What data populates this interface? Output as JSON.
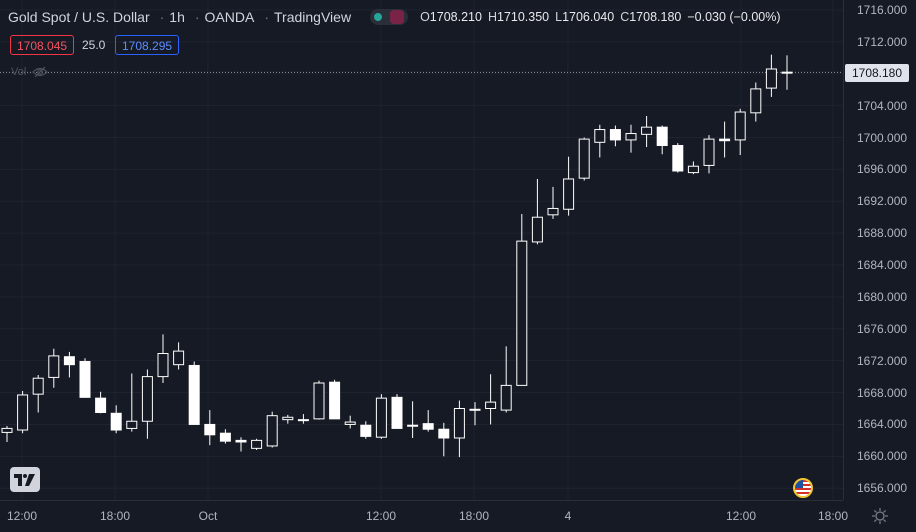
{
  "header": {
    "symbol": "Gold Spot / U.S. Dollar",
    "interval": "1h",
    "broker": "OANDA",
    "platform": "TradingView",
    "open_key": "O",
    "open": "1708.210",
    "high_key": "H",
    "high": "1710.350",
    "low_key": "L",
    "low": "1706.040",
    "close_key": "C",
    "close": "1708.180",
    "change": "−0.030 (−0.00%)"
  },
  "quote": {
    "bid": "1708.045",
    "spread": "25.0",
    "ask": "1708.295"
  },
  "volume_label": "Vol",
  "colors": {
    "background": "#161a25",
    "candle": "#ffffff",
    "bid": "#f23645",
    "ask": "#2962ff"
  },
  "icons": [
    "eye-off-icon",
    "tradingview-logo-icon",
    "us-flag-icon",
    "gear-icon"
  ],
  "chart_data": {
    "type": "candlestick",
    "x_ticks": [
      "12:00",
      "18:00",
      "Oct",
      "12:00",
      "18:00",
      "4",
      "12:00",
      "18:00"
    ],
    "ylim": [
      1654,
      1716.5
    ],
    "y_ticks": [
      "1716.000",
      "1712.000",
      "1708.000",
      "1704.000",
      "1700.000",
      "1696.000",
      "1692.000",
      "1688.000",
      "1684.000",
      "1680.000",
      "1676.000",
      "1672.000",
      "1668.000",
      "1664.000",
      "1660.000",
      "1656.000"
    ],
    "last_price": "1708.180",
    "grid": true,
    "candles": [
      {
        "o": 1663.0,
        "h": 1663.8,
        "l": 1661.8,
        "c": 1663.5
      },
      {
        "o": 1663.3,
        "h": 1668.2,
        "l": 1662.9,
        "c": 1667.7
      },
      {
        "o": 1667.8,
        "h": 1670.2,
        "l": 1665.5,
        "c": 1669.8
      },
      {
        "o": 1669.9,
        "h": 1673.5,
        "l": 1668.6,
        "c": 1672.6
      },
      {
        "o": 1672.5,
        "h": 1673.1,
        "l": 1669.9,
        "c": 1671.5
      },
      {
        "o": 1671.9,
        "h": 1672.3,
        "l": 1667.4,
        "c": 1667.4
      },
      {
        "o": 1667.3,
        "h": 1668.1,
        "l": 1665.4,
        "c": 1665.5
      },
      {
        "o": 1665.4,
        "h": 1666.4,
        "l": 1662.9,
        "c": 1663.3
      },
      {
        "o": 1663.5,
        "h": 1670.4,
        "l": 1663.1,
        "c": 1664.4
      },
      {
        "o": 1664.4,
        "h": 1670.9,
        "l": 1662.2,
        "c": 1670.0
      },
      {
        "o": 1670.0,
        "h": 1675.3,
        "l": 1669.2,
        "c": 1672.9
      },
      {
        "o": 1671.5,
        "h": 1674.3,
        "l": 1670.9,
        "c": 1673.2
      },
      {
        "o": 1671.4,
        "h": 1671.9,
        "l": 1664.0,
        "c": 1664.0
      },
      {
        "o": 1664.0,
        "h": 1665.8,
        "l": 1661.4,
        "c": 1662.7
      },
      {
        "o": 1662.9,
        "h": 1663.4,
        "l": 1661.6,
        "c": 1661.9
      },
      {
        "o": 1662.0,
        "h": 1662.4,
        "l": 1660.6,
        "c": 1661.8
      },
      {
        "o": 1661.0,
        "h": 1662.2,
        "l": 1660.8,
        "c": 1662.0
      },
      {
        "o": 1661.3,
        "h": 1665.6,
        "l": 1661.1,
        "c": 1665.1
      },
      {
        "o": 1664.6,
        "h": 1665.2,
        "l": 1664.1,
        "c": 1664.9
      },
      {
        "o": 1664.6,
        "h": 1665.3,
        "l": 1664.1,
        "c": 1664.6
      },
      {
        "o": 1664.7,
        "h": 1669.5,
        "l": 1664.6,
        "c": 1669.2
      },
      {
        "o": 1669.3,
        "h": 1669.6,
        "l": 1664.7,
        "c": 1664.7
      },
      {
        "o": 1664.0,
        "h": 1665.1,
        "l": 1663.5,
        "c": 1664.3
      },
      {
        "o": 1663.9,
        "h": 1664.4,
        "l": 1662.2,
        "c": 1662.5
      },
      {
        "o": 1662.4,
        "h": 1667.8,
        "l": 1662.2,
        "c": 1667.3
      },
      {
        "o": 1667.4,
        "h": 1667.8,
        "l": 1663.5,
        "c": 1663.5
      },
      {
        "o": 1663.9,
        "h": 1666.9,
        "l": 1662.3,
        "c": 1663.9
      },
      {
        "o": 1664.1,
        "h": 1665.8,
        "l": 1663.1,
        "c": 1663.4
      },
      {
        "o": 1663.4,
        "h": 1664.2,
        "l": 1660.0,
        "c": 1662.3
      },
      {
        "o": 1662.3,
        "h": 1667.0,
        "l": 1659.9,
        "c": 1666.0
      },
      {
        "o": 1665.9,
        "h": 1666.8,
        "l": 1663.9,
        "c": 1665.8
      },
      {
        "o": 1666.0,
        "h": 1670.3,
        "l": 1664.0,
        "c": 1666.8
      },
      {
        "o": 1665.8,
        "h": 1673.8,
        "l": 1665.5,
        "c": 1668.9
      },
      {
        "o": 1668.9,
        "h": 1690.4,
        "l": 1668.9,
        "c": 1687.0
      },
      {
        "o": 1686.9,
        "h": 1694.8,
        "l": 1686.6,
        "c": 1690.0
      },
      {
        "o": 1690.3,
        "h": 1693.8,
        "l": 1689.8,
        "c": 1691.1
      },
      {
        "o": 1691.0,
        "h": 1697.6,
        "l": 1690.2,
        "c": 1694.8
      },
      {
        "o": 1694.9,
        "h": 1700.0,
        "l": 1694.6,
        "c": 1699.8
      },
      {
        "o": 1699.4,
        "h": 1701.6,
        "l": 1697.5,
        "c": 1701.0
      },
      {
        "o": 1701.0,
        "h": 1701.5,
        "l": 1698.9,
        "c": 1699.7
      },
      {
        "o": 1699.7,
        "h": 1701.6,
        "l": 1698.1,
        "c": 1700.5
      },
      {
        "o": 1700.4,
        "h": 1702.7,
        "l": 1698.8,
        "c": 1701.3
      },
      {
        "o": 1701.3,
        "h": 1701.5,
        "l": 1697.9,
        "c": 1699.0
      },
      {
        "o": 1699.0,
        "h": 1699.3,
        "l": 1695.6,
        "c": 1695.8
      },
      {
        "o": 1695.6,
        "h": 1697.0,
        "l": 1695.4,
        "c": 1696.4
      },
      {
        "o": 1696.5,
        "h": 1700.3,
        "l": 1695.5,
        "c": 1699.8
      },
      {
        "o": 1699.8,
        "h": 1702.0,
        "l": 1697.5,
        "c": 1699.6
      },
      {
        "o": 1699.7,
        "h": 1703.6,
        "l": 1697.8,
        "c": 1703.2
      },
      {
        "o": 1703.1,
        "h": 1706.9,
        "l": 1702.0,
        "c": 1706.1
      },
      {
        "o": 1706.2,
        "h": 1710.4,
        "l": 1705.1,
        "c": 1708.6
      },
      {
        "o": 1708.2,
        "h": 1710.3,
        "l": 1706.0,
        "c": 1708.2
      }
    ]
  }
}
